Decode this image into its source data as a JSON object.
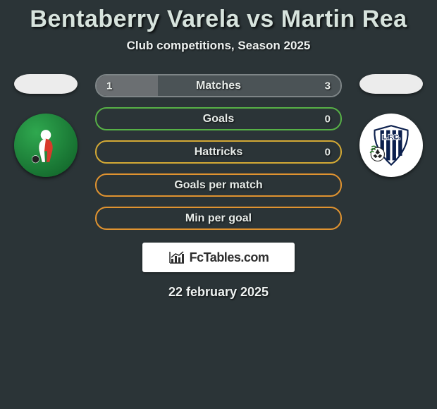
{
  "colors": {
    "background": "#2b3437",
    "title": "#d7e3dd",
    "text": "#eef2f1",
    "flag": "#ececec",
    "brand_bg": "#ffffff",
    "brand_text": "#2e2e2e"
  },
  "title": "Bentaberry Varela vs Martin Rea",
  "subtitle": "Club competitions, Season 2025",
  "player_left": {
    "name": "Bentaberry Varela",
    "club_color": "#1b7a36"
  },
  "player_right": {
    "name": "Martin Rea",
    "club_color": "#0b1f4d"
  },
  "stats": [
    {
      "label": "Matches",
      "left_value": "1",
      "right_value": "3",
      "left_pct": 25,
      "right_pct": 75,
      "left_color": "#6b6f72",
      "right_color": "#4b5356",
      "border_color": "#7e8587"
    },
    {
      "label": "Goals",
      "left_value": "",
      "right_value": "0",
      "left_pct": 0,
      "right_pct": 0,
      "left_color": "#3c8a2e",
      "right_color": "#3c8a2e",
      "border_color": "#57b146"
    },
    {
      "label": "Hattricks",
      "left_value": "",
      "right_value": "0",
      "left_pct": 0,
      "right_pct": 0,
      "left_color": "#b78a1f",
      "right_color": "#b78a1f",
      "border_color": "#d3a935"
    },
    {
      "label": "Goals per match",
      "left_value": "",
      "right_value": "",
      "left_pct": 0,
      "right_pct": 0,
      "left_color": "#c77a17",
      "right_color": "#c77a17",
      "border_color": "#e09330"
    },
    {
      "label": "Min per goal",
      "left_value": "",
      "right_value": "",
      "left_pct": 0,
      "right_pct": 0,
      "left_color": "#c77a17",
      "right_color": "#c77a17",
      "border_color": "#e09330"
    }
  ],
  "brand": {
    "text": "FcTables.com"
  },
  "date": "22 february 2025"
}
